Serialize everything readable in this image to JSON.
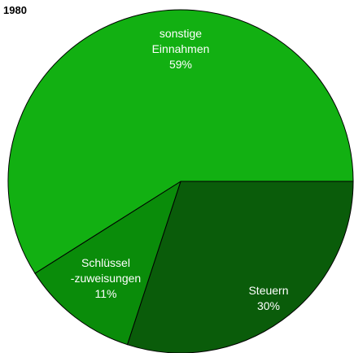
{
  "chart_data": {
    "type": "pie",
    "title": "1980",
    "categories": [
      "Steuern",
      "Schlüssel\n-zuweisungen",
      "sonstige\nEinnahmen"
    ],
    "values": [
      30,
      11,
      59
    ],
    "value_labels": [
      "30%",
      "11%",
      "59%"
    ],
    "colors": [
      "#0a5c0a",
      "#0a8c0a",
      "#12b012"
    ]
  }
}
